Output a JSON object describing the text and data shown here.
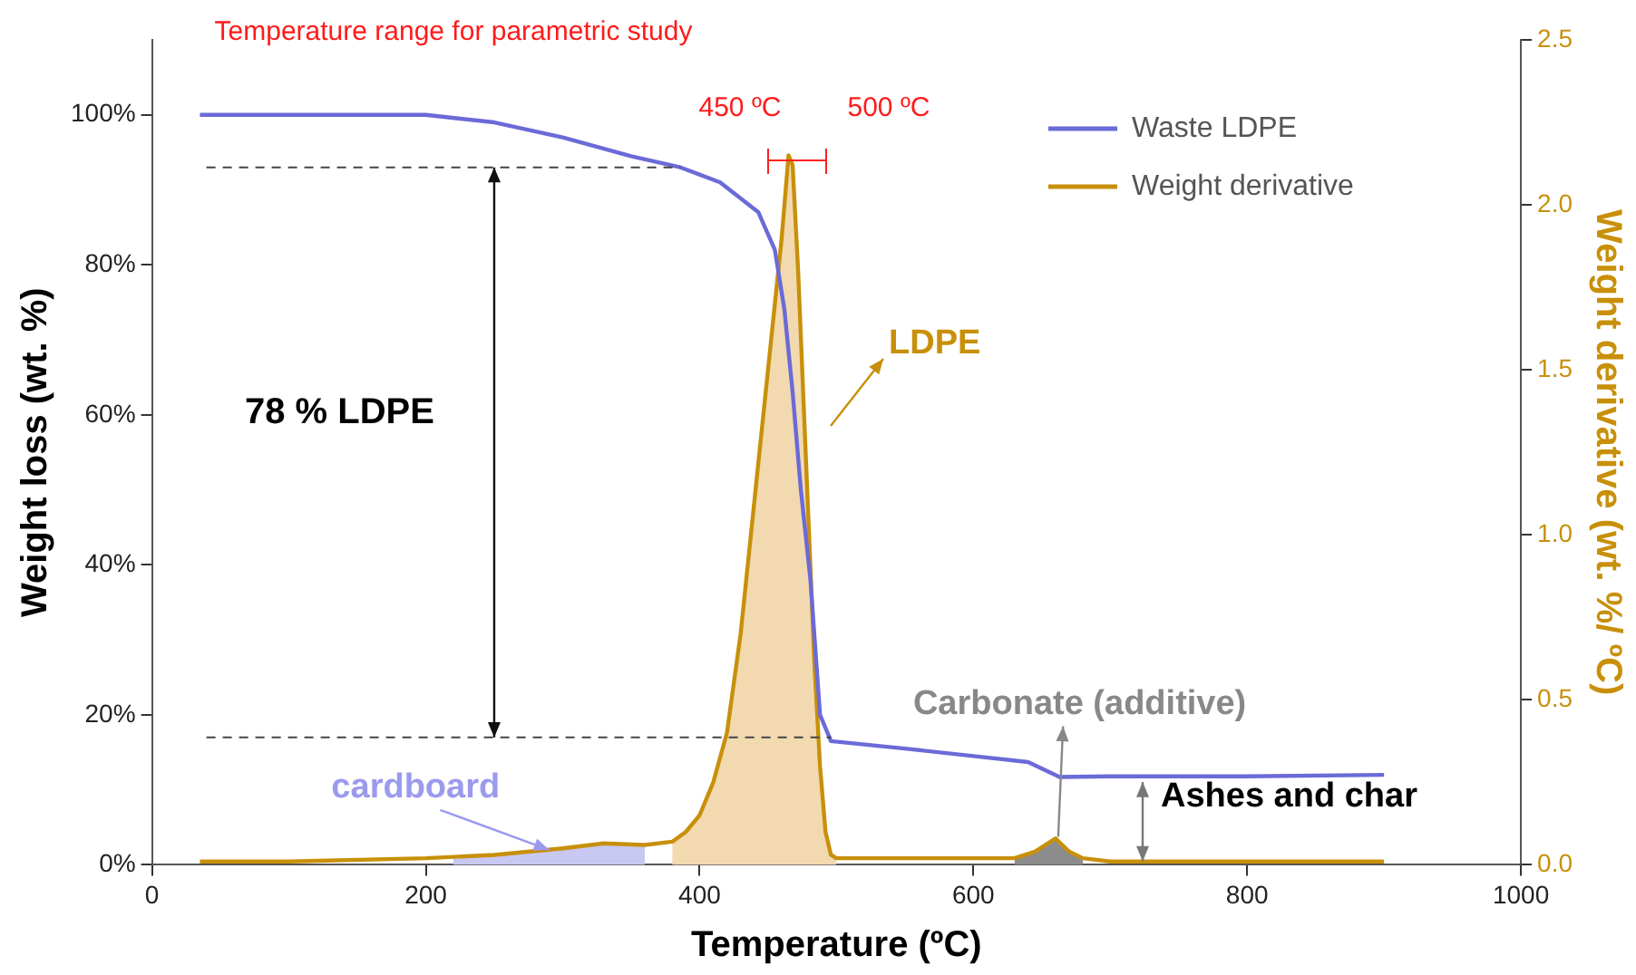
{
  "chart_data": {
    "type": "line",
    "title": "Temperature range for parametric study",
    "xlabel": "Temperature (ºC)",
    "ylabel": "Weight loss (wt. %)",
    "y2label": "Weight derivative (wt. %/ ºC)",
    "xlim": [
      0,
      1000
    ],
    "xticks": [
      0,
      200,
      400,
      600,
      800,
      1000
    ],
    "ylim": [
      0,
      110
    ],
    "yticks": [
      {
        "value": 0,
        "label": "0%"
      },
      {
        "value": 20,
        "label": "20%"
      },
      {
        "value": 40,
        "label": "40%"
      },
      {
        "value": 60,
        "label": "60%"
      },
      {
        "value": 80,
        "label": "80%"
      },
      {
        "value": 100,
        "label": "100%"
      }
    ],
    "y2lim": [
      0,
      2.5
    ],
    "y2ticks": [
      {
        "value": 0,
        "label": "0.0"
      },
      0.5,
      {
        "value": 1,
        "label": "1.0"
      },
      1.5,
      {
        "value": 2,
        "label": "2.0"
      },
      2.5
    ],
    "grid": false,
    "legend": "top right",
    "marker": "none",
    "line_style": "solid",
    "series": [
      {
        "type": "area",
        "color": "#c8c8f2",
        "axis": "y2",
        "x": [
          220,
          250,
          300,
          330,
          360
        ],
        "values": [
          0.025,
          0.03,
          0.05,
          0.065,
          0.06
        ]
      },
      {
        "type": "area",
        "color": "#f2d9b0",
        "axis": "y2",
        "x": [
          380,
          390,
          400,
          410,
          420,
          430,
          440,
          450,
          460,
          465,
          468,
          472,
          476,
          480,
          484,
          488,
          492,
          496,
          500
        ],
        "values": [
          0.07,
          0.1,
          0.15,
          0.25,
          0.4,
          0.7,
          1.1,
          1.5,
          1.9,
          2.15,
          2.12,
          1.8,
          1.4,
          1,
          0.6,
          0.3,
          0.1,
          0.03,
          0.02
        ]
      },
      {
        "type": "area",
        "color": "#8c8c8c",
        "axis": "y2",
        "x": [
          630,
          645,
          660,
          670,
          680
        ],
        "values": [
          0.02,
          0.04,
          0.08,
          0.04,
          0.02
        ]
      },
      {
        "name": "Waste LDPE",
        "color": "#6a6ad8",
        "x": [
          35,
          100,
          150,
          200,
          250,
          300,
          350,
          386,
          415,
          443,
          455,
          462,
          468,
          474,
          481,
          488,
          496,
          550,
          600,
          640,
          663,
          700,
          800,
          900
        ],
        "values": [
          100,
          100,
          100,
          100,
          99,
          97,
          94.5,
          93,
          91,
          87,
          82,
          74,
          63,
          50,
          38,
          20,
          16.5,
          15.5,
          14.5,
          13.7,
          11.7,
          11.8,
          11.8,
          12
        ]
      },
      {
        "name": "Weight derivative",
        "color": "#c8900a",
        "axis": "y2",
        "x": [
          35,
          100,
          200,
          250,
          300,
          330,
          360,
          380,
          390,
          400,
          410,
          420,
          430,
          440,
          450,
          460,
          465,
          468,
          472,
          476,
          480,
          484,
          488,
          492,
          496,
          500,
          550,
          600,
          630,
          645,
          660,
          670,
          680,
          700,
          800,
          900
        ],
        "values": [
          0.01,
          0.01,
          0.02,
          0.03,
          0.05,
          0.065,
          0.06,
          0.07,
          0.1,
          0.15,
          0.25,
          0.4,
          0.7,
          1.1,
          1.5,
          1.9,
          2.15,
          2.12,
          1.8,
          1.4,
          1,
          0.6,
          0.3,
          0.1,
          0.03,
          0.02,
          0.02,
          0.02,
          0.02,
          0.04,
          0.08,
          0.04,
          0.02,
          0.01,
          0.01,
          0.01
        ]
      }
    ],
    "ref_lines": [
      {
        "axis": "y",
        "value": 93,
        "color": "#444444",
        "line_style": "dashed"
      },
      {
        "axis": "y",
        "value": 17,
        "color": "#444444",
        "line_style": "dashed"
      }
    ],
    "annotations": [
      "450 ºC",
      "500 ºC",
      "78 % LDPE",
      {
        "text": "cardboard",
        "x": 290,
        "y": 2
      },
      "LDPE",
      {
        "text": "Carbonate (additive)",
        "x": 662,
        "y": 3
      },
      "Ashes and char"
    ]
  }
}
